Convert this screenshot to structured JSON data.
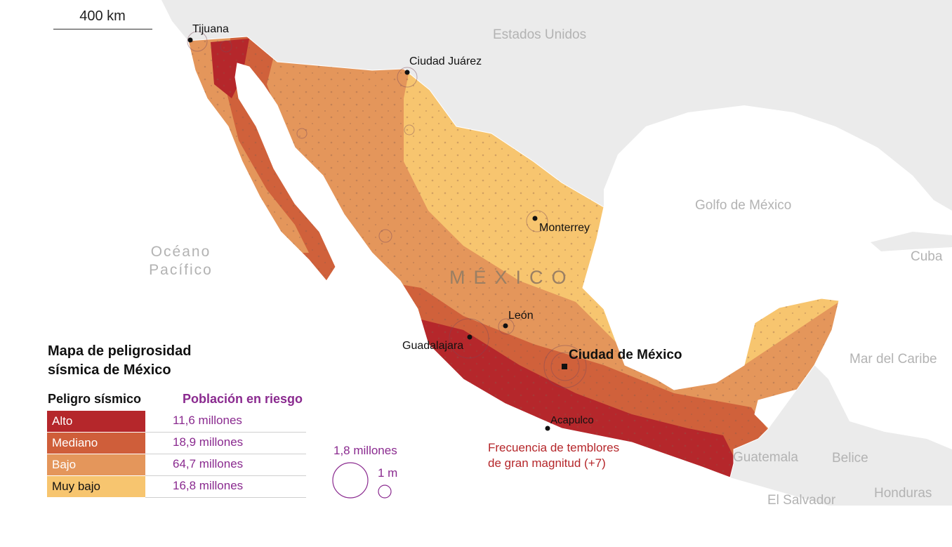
{
  "scale": {
    "label": "400 km"
  },
  "geography": {
    "ocean": "Océano Pacífico",
    "ocean_line1": "Océano",
    "ocean_line2": "Pacífico",
    "usa": "Estados Unidos",
    "gulf": "Golfo de México",
    "cuba": "Cuba",
    "caribbean": "Mar del Caribe",
    "guatemala": "Guatemala",
    "belize": "Belice",
    "el_salvador": "El Salvador",
    "honduras": "Honduras",
    "country": "MÉXICO"
  },
  "cities": {
    "tijuana": "Tijuana",
    "juarez": "Ciudad Juárez",
    "monterrey": "Monterrey",
    "leon": "León",
    "guadalajara": "Guadalajara",
    "cdmx": "Ciudad de México",
    "acapulco": "Acapulco"
  },
  "annotation": {
    "line1": "Frecuencia de temblores",
    "line2": "de gran magnitud (+7)"
  },
  "legend": {
    "title_line1": "Mapa de peligrosidad",
    "title_line2": "sísmica de México",
    "col_hazard": "Peligro sísmico",
    "col_population": "Población en riesgo",
    "rows": [
      {
        "level": "Alto",
        "population": "11,6 millones",
        "color": "#b5272b"
      },
      {
        "level": "Mediano",
        "population": "18,9 millones",
        "color": "#cf5e3a"
      },
      {
        "level": "Bajo",
        "population": "64,7 millones",
        "color": "#e4965b"
      },
      {
        "level": "Muy bajo",
        "population": "16,8 millones",
        "color": "#f7c56f"
      }
    ],
    "size_large": "1,8 millones",
    "size_small": "1 m"
  },
  "colors": {
    "land_neighbor": "#e9e9e9",
    "water": "#ffffff",
    "population_circle": "#8a2a8f"
  }
}
